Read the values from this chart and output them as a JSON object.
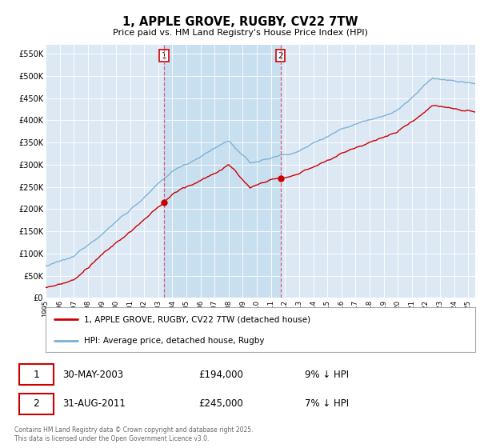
{
  "title": "1, APPLE GROVE, RUGBY, CV22 7TW",
  "subtitle": "Price paid vs. HM Land Registry's House Price Index (HPI)",
  "ylabel_ticks": [
    "£0",
    "£50K",
    "£100K",
    "£150K",
    "£200K",
    "£250K",
    "£300K",
    "£350K",
    "£400K",
    "£450K",
    "£500K",
    "£550K"
  ],
  "ytick_values": [
    0,
    50000,
    100000,
    150000,
    200000,
    250000,
    300000,
    350000,
    400000,
    450000,
    500000,
    550000
  ],
  "ylim": [
    0,
    570000
  ],
  "xlim_start": 1995,
  "xlim_end": 2025.5,
  "legend_line1": "1, APPLE GROVE, RUGBY, CV22 7TW (detached house)",
  "legend_line2": "HPI: Average price, detached house, Rugby",
  "sale1_date": "30-MAY-2003",
  "sale1_price": "£194,000",
  "sale1_hpi": "9% ↓ HPI",
  "sale2_date": "31-AUG-2011",
  "sale2_price": "£245,000",
  "sale2_hpi": "7% ↓ HPI",
  "footer": "Contains HM Land Registry data © Crown copyright and database right 2025.\nThis data is licensed under the Open Government Licence v3.0.",
  "color_price_paid": "#cc0000",
  "color_hpi": "#7ab0d4",
  "color_vline": "#d4607a",
  "sale1_year": 2003.42,
  "sale1_price_val": 194000,
  "sale2_year": 2011.67,
  "sale2_price_val": 245000,
  "background_color": "#dce9f5",
  "highlight_color": "#c8dff0"
}
